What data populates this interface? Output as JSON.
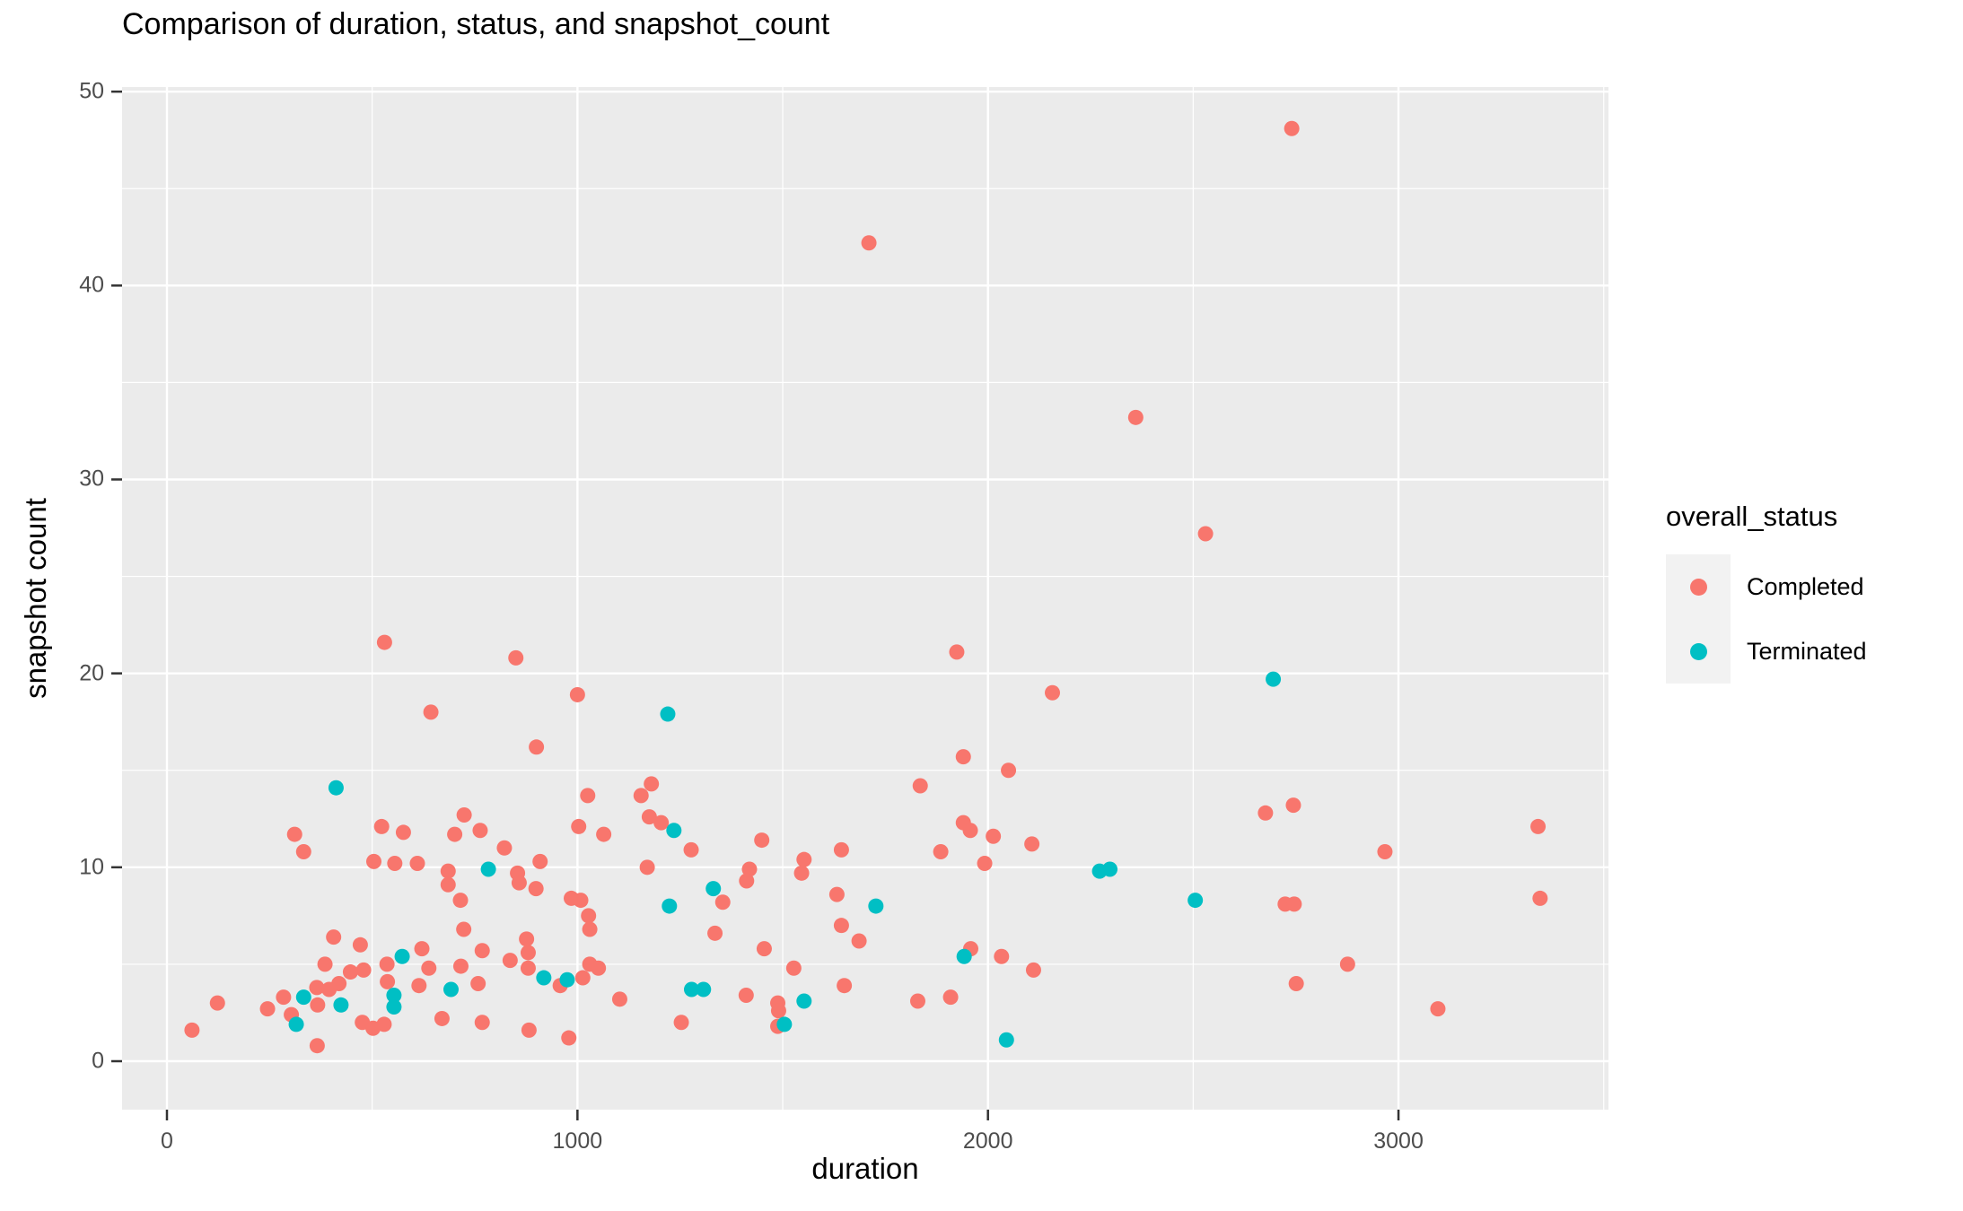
{
  "title": "Comparison of duration, status, and snapshot_count",
  "x_axis": {
    "label": "duration",
    "tick_labels": [
      "0",
      "1000",
      "2000",
      "3000"
    ],
    "tick_values": [
      0,
      1000,
      2000,
      3000
    ],
    "minor_tick_values": [
      500,
      1500,
      2500,
      3500
    ]
  },
  "y_axis": {
    "label": "snapshot count",
    "tick_labels": [
      "0",
      "10",
      "20",
      "30",
      "40",
      "50"
    ],
    "tick_values": [
      0,
      10,
      20,
      30,
      40,
      50
    ],
    "minor_tick_values": [
      5,
      15,
      25,
      35,
      45
    ]
  },
  "legend": {
    "title": "overall_status",
    "items": [
      {
        "label": "Completed",
        "color": "#F8766D"
      },
      {
        "label": "Terminated",
        "color": "#00BFC4"
      }
    ]
  },
  "colors": {
    "panel_background": "#EBEBEB",
    "grid": "#FFFFFF",
    "tick_text": "#4D4D4D",
    "axis_tick": "#333333",
    "legend_key_background": "#F2F2F2"
  },
  "chart_data": {
    "type": "scatter",
    "title": "Comparison of duration, status, and snapshot_count",
    "xlabel": "duration",
    "ylabel": "snapshot count",
    "xlim": [
      -110,
      3510
    ],
    "ylim": [
      -2.5,
      50.3
    ],
    "grid": "on",
    "legend_position": "right",
    "series": [
      {
        "name": "Completed",
        "color": "#F8766D",
        "points": [
          [
            2740,
            48.1
          ],
          [
            1710,
            42.2
          ],
          [
            2360,
            33.2
          ],
          [
            2530,
            27.2
          ],
          [
            530,
            21.6
          ],
          [
            1924,
            21.1
          ],
          [
            850,
            20.8
          ],
          [
            2157,
            19.0
          ],
          [
            1000,
            18.9
          ],
          [
            643,
            18.0
          ],
          [
            900,
            16.2
          ],
          [
            1940,
            15.7
          ],
          [
            2050,
            15.0
          ],
          [
            1180,
            14.3
          ],
          [
            1835,
            14.2
          ],
          [
            1155,
            13.7
          ],
          [
            1025,
            13.7
          ],
          [
            2744,
            13.2
          ],
          [
            2676,
            12.8
          ],
          [
            724,
            12.7
          ],
          [
            1175,
            12.6
          ],
          [
            1204,
            12.3
          ],
          [
            1940,
            12.3
          ],
          [
            523,
            12.1
          ],
          [
            1003,
            12.1
          ],
          [
            3340,
            12.1
          ],
          [
            763,
            11.9
          ],
          [
            1957,
            11.9
          ],
          [
            576,
            11.8
          ],
          [
            311,
            11.7
          ],
          [
            701,
            11.7
          ],
          [
            1064,
            11.7
          ],
          [
            2013,
            11.6
          ],
          [
            1449,
            11.4
          ],
          [
            2107,
            11.2
          ],
          [
            822,
            11.0
          ],
          [
            1277,
            10.9
          ],
          [
            1643,
            10.9
          ],
          [
            333,
            10.8
          ],
          [
            1885,
            10.8
          ],
          [
            2967,
            10.8
          ],
          [
            1552,
            10.4
          ],
          [
            504,
            10.3
          ],
          [
            909,
            10.3
          ],
          [
            555,
            10.2
          ],
          [
            610,
            10.2
          ],
          [
            1992,
            10.2
          ],
          [
            1170,
            10.0
          ],
          [
            1419,
            9.9
          ],
          [
            685,
            9.8
          ],
          [
            854,
            9.7
          ],
          [
            1546,
            9.7
          ],
          [
            1412,
            9.3
          ],
          [
            858,
            9.2
          ],
          [
            685,
            9.1
          ],
          [
            899,
            8.9
          ],
          [
            1632,
            8.6
          ],
          [
            985,
            8.4
          ],
          [
            3345,
            8.4
          ],
          [
            715,
            8.3
          ],
          [
            1008,
            8.3
          ],
          [
            1354,
            8.2
          ],
          [
            2724,
            8.1
          ],
          [
            2746,
            8.1
          ],
          [
            1027,
            7.5
          ],
          [
            1643,
            7.0
          ],
          [
            723,
            6.8
          ],
          [
            1030,
            6.8
          ],
          [
            1335,
            6.6
          ],
          [
            406,
            6.4
          ],
          [
            876,
            6.3
          ],
          [
            1686,
            6.2
          ],
          [
            471,
            6.0
          ],
          [
            621,
            5.8
          ],
          [
            1455,
            5.8
          ],
          [
            1958,
            5.8
          ],
          [
            768,
            5.7
          ],
          [
            880,
            5.6
          ],
          [
            2033,
            5.4
          ],
          [
            836,
            5.2
          ],
          [
            385,
            5.0
          ],
          [
            536,
            5.0
          ],
          [
            716,
            4.9
          ],
          [
            1030,
            5.0
          ],
          [
            2876,
            5.0
          ],
          [
            638,
            4.8
          ],
          [
            880,
            4.8
          ],
          [
            1051,
            4.8
          ],
          [
            1527,
            4.8
          ],
          [
            479,
            4.7
          ],
          [
            2111,
            4.7
          ],
          [
            447,
            4.6
          ],
          [
            1013,
            4.3
          ],
          [
            537,
            4.1
          ],
          [
            419,
            4.0
          ],
          [
            758,
            4.0
          ],
          [
            2751,
            4.0
          ],
          [
            614,
            3.9
          ],
          [
            958,
            3.9
          ],
          [
            1650,
            3.9
          ],
          [
            365,
            3.8
          ],
          [
            395,
            3.7
          ],
          [
            1411,
            3.4
          ],
          [
            284,
            3.3
          ],
          [
            1909,
            3.3
          ],
          [
            1103,
            3.2
          ],
          [
            1829,
            3.1
          ],
          [
            123,
            3.0
          ],
          [
            1488,
            3.0
          ],
          [
            367,
            2.9
          ],
          [
            245,
            2.7
          ],
          [
            3096,
            2.7
          ],
          [
            1490,
            2.6
          ],
          [
            303,
            2.4
          ],
          [
            670,
            2.2
          ],
          [
            476,
            2.0
          ],
          [
            768,
            2.0
          ],
          [
            1253,
            2.0
          ],
          [
            529,
            1.9
          ],
          [
            1488,
            1.8
          ],
          [
            502,
            1.7
          ],
          [
            61,
            1.6
          ],
          [
            882,
            1.6
          ],
          [
            979,
            1.2
          ],
          [
            366,
            0.8
          ]
        ]
      },
      {
        "name": "Terminated",
        "color": "#00BFC4",
        "points": [
          [
            2695,
            19.7
          ],
          [
            1220,
            17.9
          ],
          [
            412,
            14.1
          ],
          [
            1235,
            11.9
          ],
          [
            783,
            9.9
          ],
          [
            2272,
            9.8
          ],
          [
            2297,
            9.9
          ],
          [
            1331,
            8.9
          ],
          [
            2505,
            8.3
          ],
          [
            1224,
            8.0
          ],
          [
            1727,
            8.0
          ],
          [
            573,
            5.4
          ],
          [
            1942,
            5.4
          ],
          [
            918,
            4.3
          ],
          [
            975,
            4.2
          ],
          [
            1278,
            3.7
          ],
          [
            1307,
            3.7
          ],
          [
            692,
            3.7
          ],
          [
            553,
            3.4
          ],
          [
            333,
            3.3
          ],
          [
            1552,
            3.1
          ],
          [
            424,
            2.9
          ],
          [
            553,
            2.8
          ],
          [
            315,
            1.9
          ],
          [
            1504,
            1.9
          ],
          [
            2045,
            1.1
          ]
        ]
      }
    ]
  }
}
